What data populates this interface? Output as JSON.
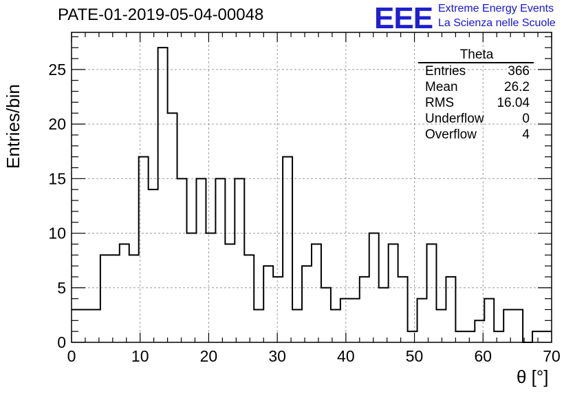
{
  "header": {
    "title": "PATE-01-2019-05-04-00048"
  },
  "logo": {
    "mark": "EEE",
    "line1": "Extreme Energy Events",
    "line2": "La Scienza nelle Scuole",
    "color": "#1f1fd0"
  },
  "stats_box": {
    "title": "Theta",
    "rows": [
      {
        "label": "Entries",
        "value": "366"
      },
      {
        "label": "Mean",
        "value": "26.2"
      },
      {
        "label": "RMS",
        "value": "16.04"
      },
      {
        "label": "Underflow",
        "value": "0"
      },
      {
        "label": "Overflow",
        "value": "4"
      }
    ]
  },
  "chart_data": {
    "type": "bar",
    "style": "step-histogram",
    "title": "PATE-01-2019-05-04-00048",
    "xlabel": "θ [°]",
    "ylabel": "Entries/bin",
    "xlim": [
      0,
      70
    ],
    "ylim": [
      0,
      28.4
    ],
    "grid": true,
    "bin_width": 1.4,
    "x_ticks": [
      0,
      10,
      20,
      30,
      40,
      50,
      60,
      70
    ],
    "y_ticks": [
      0,
      5,
      10,
      15,
      20,
      25
    ],
    "values": [
      3,
      3,
      3,
      8,
      8,
      9,
      8,
      17,
      14,
      27,
      21,
      15,
      10,
      15,
      10,
      15,
      9,
      15,
      8,
      3,
      7,
      6,
      17,
      3,
      7,
      9,
      5,
      3,
      4,
      4,
      6,
      10,
      5,
      9,
      6,
      1,
      4,
      9,
      3,
      6,
      1,
      1,
      2,
      4,
      1,
      3,
      3,
      0,
      1,
      1
    ]
  }
}
